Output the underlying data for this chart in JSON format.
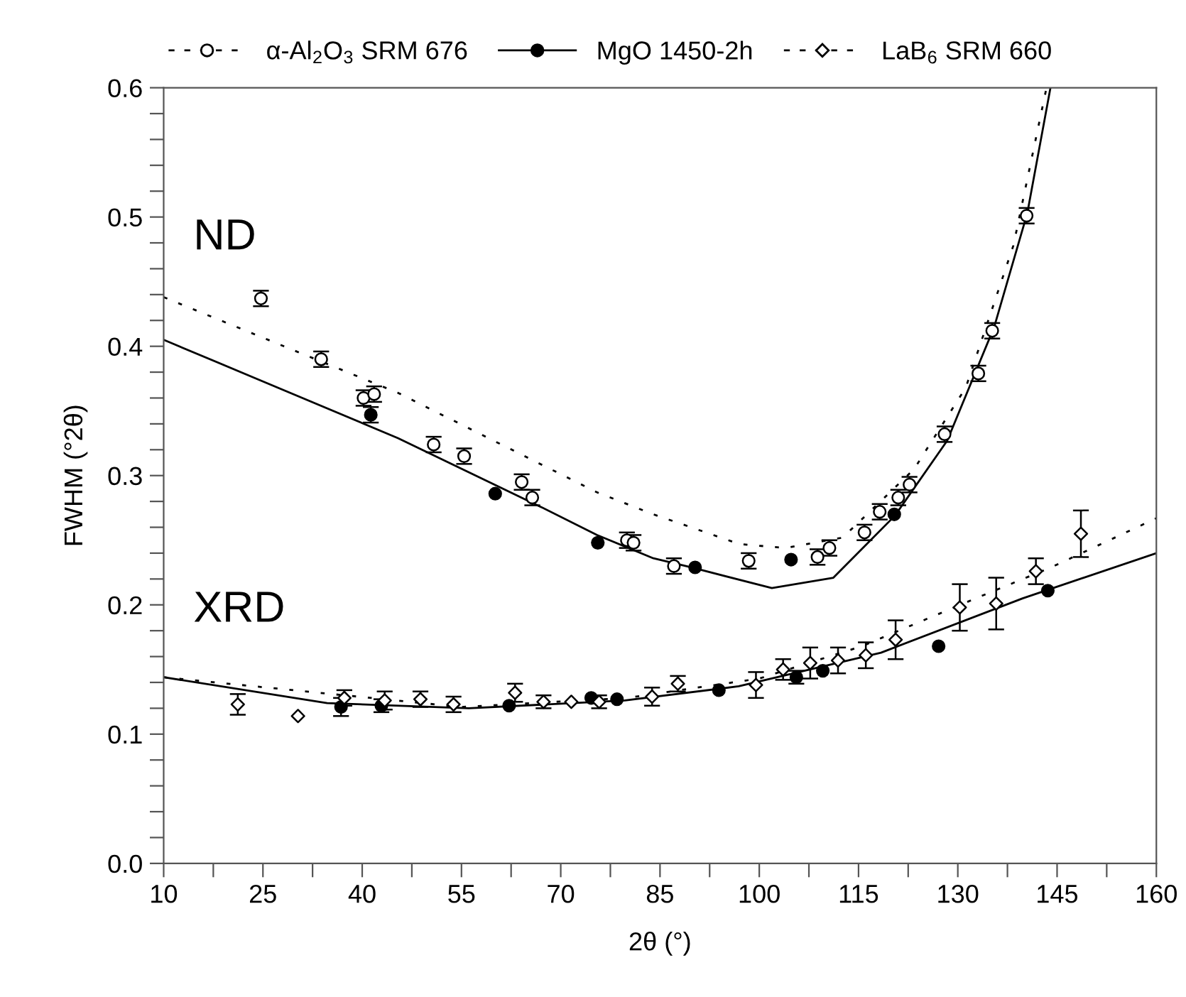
{
  "chart_data": {
    "type": "scatter",
    "xlabel": "2θ (°)",
    "ylabel": "FWHM (°2θ)",
    "annotations": [
      "ND",
      "XRD"
    ],
    "xlim": [
      10,
      160
    ],
    "ylim": [
      0,
      0.6
    ],
    "xticks": [
      10,
      {
        "value": 17.5,
        "label": null
      },
      25,
      {
        "value": 32.5,
        "label": null
      },
      40,
      {
        "value": 47.5,
        "label": null
      },
      55,
      {
        "value": 62.5,
        "label": null
      },
      70,
      {
        "value": 77.5,
        "label": null
      },
      85,
      {
        "value": 92.5,
        "label": null
      },
      100,
      {
        "value": 107.5,
        "label": null
      },
      115,
      {
        "value": 122.5,
        "label": null
      },
      130,
      {
        "value": 137.5,
        "label": null
      },
      145,
      {
        "value": 152.5,
        "label": null
      },
      160
    ],
    "yticks": [
      {
        "value": 0,
        "label": "0.0"
      },
      {
        "value": 0.02,
        "label": null
      },
      {
        "value": 0.04,
        "label": null
      },
      {
        "value": 0.06,
        "label": null
      },
      {
        "value": 0.08,
        "label": null
      },
      {
        "value": 0.1,
        "label": "0.1"
      },
      {
        "value": 0.12,
        "label": null
      },
      {
        "value": 0.14,
        "label": null
      },
      {
        "value": 0.16,
        "label": null
      },
      {
        "value": 0.18,
        "label": null
      },
      {
        "value": 0.2,
        "label": "0.2"
      },
      {
        "value": 0.22,
        "label": null
      },
      {
        "value": 0.24,
        "label": null
      },
      {
        "value": 0.26,
        "label": null
      },
      {
        "value": 0.28,
        "label": null
      },
      {
        "value": 0.3,
        "label": "0.3"
      },
      {
        "value": 0.32,
        "label": null
      },
      {
        "value": 0.34,
        "label": null
      },
      {
        "value": 0.36,
        "label": null
      },
      {
        "value": 0.38,
        "label": null
      },
      {
        "value": 0.4,
        "label": "0.4"
      },
      {
        "value": 0.42,
        "label": null
      },
      {
        "value": 0.44,
        "label": null
      },
      {
        "value": 0.46,
        "label": null
      },
      {
        "value": 0.48,
        "label": null
      },
      {
        "value": 0.5,
        "label": "0.5"
      },
      {
        "value": 0.52,
        "label": null
      },
      {
        "value": 0.54,
        "label": null
      },
      {
        "value": 0.56,
        "label": null
      },
      {
        "value": 0.58,
        "label": null
      },
      {
        "value": 0.6,
        "label": "0.6"
      }
    ],
    "grid": false,
    "legend": "top",
    "series": [
      {
        "name": "α-Al$_{2}$O$_{3}$ SRM 676",
        "color": "#ffffff",
        "marker": "circle",
        "line_style": "dashed",
        "x": [
          24.7,
          33.8,
          40.2,
          41.8,
          50.8,
          55.4,
          64.1,
          65.7,
          80.0,
          81.0,
          87.1,
          98.4,
          108.8,
          110.6,
          115.9,
          118.2,
          121.0,
          122.7,
          128.0,
          133.1,
          135.2,
          140.4
        ],
        "values": [
          0.437,
          0.39,
          0.36,
          0.363,
          0.324,
          0.315,
          0.295,
          0.283,
          0.25,
          0.248,
          0.23,
          0.234,
          0.237,
          0.244,
          0.256,
          0.272,
          0.283,
          0.293,
          0.332,
          0.379,
          0.412,
          0.501
        ],
        "errors": [
          0.006,
          0.006,
          0.006,
          0.006,
          0.006,
          0.006,
          0.006,
          0.006,
          0.006,
          0.006,
          0.006,
          0.006,
          0.006,
          0.006,
          0.006,
          0.006,
          0.006,
          0.006,
          0.006,
          0.006,
          0.006,
          0.006
        ]
      },
      {
        "name": "MgO 1450-2h",
        "color": "#000000",
        "marker": "circle",
        "line_style": "solid",
        "x": [
          41.3,
          60.1,
          75.6,
          90.3,
          104.8,
          120.4,
          36.8,
          42.9,
          62.2,
          74.6,
          78.5,
          93.9,
          105.6,
          109.6,
          127.1,
          143.6
        ],
        "values": [
          0.347,
          0.286,
          0.248,
          0.229,
          0.235,
          0.27,
          0.121,
          0.122,
          0.122,
          0.128,
          0.127,
          0.134,
          0.144,
          0.149,
          0.168,
          0.211
        ],
        "errors": [
          0.006,
          null,
          null,
          null,
          null,
          null,
          0.007,
          0.005,
          null,
          null,
          null,
          null,
          0.005,
          null,
          null,
          null
        ]
      },
      {
        "name": "LaB$_{6}$ SRM 660",
        "color": "#ffffff",
        "marker": "diamond",
        "line_style": "dashed",
        "x": [
          21.2,
          30.3,
          37.3,
          43.4,
          48.8,
          53.8,
          63.1,
          67.4,
          71.6,
          75.8,
          83.8,
          87.7,
          99.5,
          103.6,
          107.7,
          111.9,
          116.1,
          120.6,
          130.3,
          135.8,
          141.8,
          148.6
        ],
        "values": [
          0.123,
          0.114,
          0.128,
          0.126,
          0.127,
          0.123,
          0.132,
          0.125,
          0.125,
          0.125,
          0.129,
          0.139,
          0.138,
          0.15,
          0.155,
          0.157,
          0.161,
          0.173,
          0.198,
          0.201,
          0.226,
          0.255
        ],
        "errors": [
          0.008,
          null,
          0.006,
          0.007,
          0.006,
          0.006,
          0.007,
          0.005,
          null,
          0.005,
          0.007,
          0.006,
          0.01,
          0.008,
          0.012,
          0.01,
          0.01,
          0.015,
          0.018,
          0.02,
          0.01,
          0.018
        ]
      },
      {
        "type": "line",
        "color": "#000000",
        "line_style": "solid",
        "marker": "none",
        "x": [
          10,
          24,
          45.4,
          66.9,
          75.5,
          84,
          89.7,
          101.9,
          111.2,
          120.5,
          128.4,
          135.5,
          140.5,
          144
        ],
        "values": [
          0.405,
          0.375,
          0.329,
          0.276,
          0.254,
          0.236,
          0.229,
          0.213,
          0.221,
          0.269,
          0.327,
          0.415,
          0.503,
          0.6
        ]
      },
      {
        "type": "line",
        "color": "#000000",
        "line_style": "dotted",
        "marker": "none",
        "x": [
          10,
          45.4,
          75.5,
          84,
          89.7,
          97,
          104,
          112.6,
          123.4,
          131.2,
          138.4,
          143.4
        ],
        "values": [
          0.438,
          0.364,
          0.287,
          0.27,
          0.26,
          0.247,
          0.244,
          0.252,
          0.305,
          0.368,
          0.478,
          0.6
        ]
      },
      {
        "type": "line",
        "color": "#000000",
        "line_style": "solid",
        "marker": "none",
        "x": [
          10,
          34.7,
          56.1,
          79.7,
          96.9,
          118.4,
          139.8,
          160
        ],
        "values": [
          0.144,
          0.124,
          0.12,
          0.126,
          0.137,
          0.163,
          0.205,
          0.24
        ]
      },
      {
        "type": "line",
        "color": "#000000",
        "line_style": "dotted",
        "marker": "none",
        "x": [
          10,
          55,
          80,
          100,
          115.5,
          132.7,
          144.1,
          160
        ],
        "values": [
          0.144,
          0.121,
          0.128,
          0.143,
          0.168,
          0.205,
          0.229,
          0.267
        ]
      }
    ]
  }
}
